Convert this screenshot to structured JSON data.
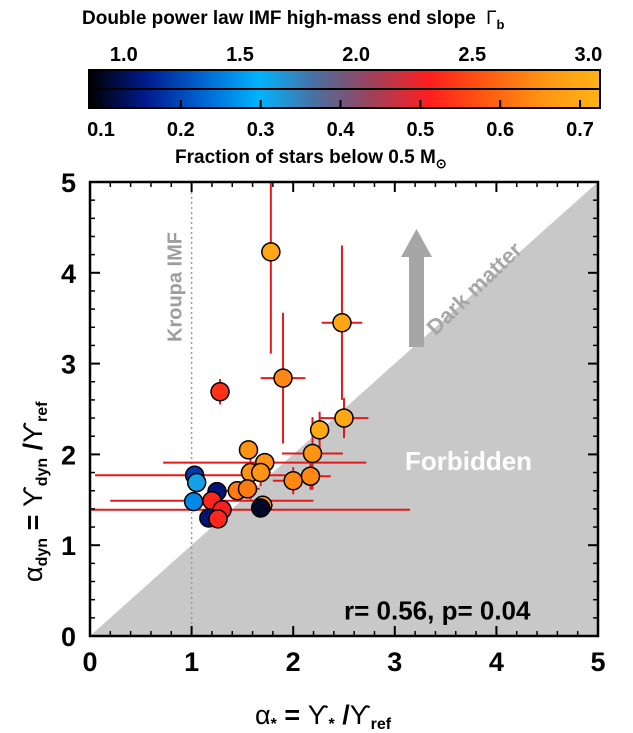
{
  "colorbar": {
    "top_title": "Double power law IMF high-mass end slope",
    "top_title_symbol": "Γ",
    "top_title_sub": "b",
    "top_ticks": [
      "1.0",
      "1.5",
      "2.0",
      "2.5",
      "3.0"
    ],
    "top_range": [
      0.85,
      3.05
    ],
    "bottom_ticks": [
      "0.1",
      "0.2",
      "0.3",
      "0.4",
      "0.5",
      "0.6",
      "0.7"
    ],
    "bottom_range": [
      0.085,
      0.725
    ],
    "bottom_title": "Fraction of stars below 0.5 M",
    "bottom_title_sub": "⊙",
    "colors": [
      "#000000",
      "#001a8c",
      "#0064d2",
      "#00b4ff",
      "#4c6e9e",
      "#a0405a",
      "#ff1e1e",
      "#ff5a10",
      "#ff9414",
      "#ffb414"
    ]
  },
  "chart_data": {
    "type": "scatter",
    "xlim": [
      0,
      5
    ],
    "ylim": [
      0,
      5
    ],
    "x_ticks": [
      "0",
      "1",
      "2",
      "3",
      "4",
      "5"
    ],
    "y_ticks": [
      "0",
      "1",
      "2",
      "3",
      "4",
      "5"
    ],
    "xlabel_parts": {
      "alpha": "α",
      "alpha_sub": "*",
      "eq": " = ",
      "ups": "ϒ",
      "ups_sub": "*",
      "slash": " /",
      "ups2": "ϒ",
      "ups2_sub": "ref"
    },
    "ylabel_parts": {
      "alpha": "α",
      "alpha_sub": "dyn",
      "eq": " = ",
      "ups": "ϒ",
      "ups_sub": "dyn",
      "slash": " /",
      "ups2": "ϒ",
      "ups2_sub": "ref"
    },
    "reference_line": {
      "x": 1.0,
      "label": "Kroupa IMF"
    },
    "regions": {
      "forbidden_label": "Forbidden",
      "dark_matter_label": "Dark matter"
    },
    "stats_label": "r= 0.56, p= 0.04",
    "points": [
      {
        "x": 1.78,
        "y": 4.23,
        "xerr": [
          0.03,
          0.03
        ],
        "yerr": [
          1.12,
          1.12
        ],
        "gamma": 2.95
      },
      {
        "x": 2.48,
        "y": 3.45,
        "xerr": [
          0.2,
          0.2
        ],
        "yerr": [
          0.85,
          0.85
        ],
        "gamma": 2.95
      },
      {
        "x": 1.9,
        "y": 2.84,
        "xerr": [
          0.22,
          0.22
        ],
        "yerr": [
          0.72,
          0.72
        ],
        "gamma": 2.75
      },
      {
        "x": 1.28,
        "y": 2.69,
        "xerr": [
          0.03,
          0.03
        ],
        "yerr": [
          0.14,
          0.14
        ],
        "gamma": 2.4
      },
      {
        "x": 2.26,
        "y": 2.27,
        "xerr": [
          0.08,
          0.08
        ],
        "yerr": [
          0.2,
          0.2
        ],
        "gamma": 2.98
      },
      {
        "x": 2.5,
        "y": 2.4,
        "xerr": [
          0.24,
          0.24
        ],
        "yerr": [
          0.22,
          0.22
        ],
        "gamma": 2.95
      },
      {
        "x": 1.56,
        "y": 2.05,
        "xerr": [
          0.04,
          0.04
        ],
        "yerr": [
          0.04,
          0.04
        ],
        "gamma": 2.8
      },
      {
        "x": 2.19,
        "y": 2.01,
        "xerr": [
          0.3,
          0.3
        ],
        "yerr": [
          0.4,
          0.4
        ],
        "gamma": 2.8
      },
      {
        "x": 1.72,
        "y": 1.91,
        "xerr": [
          1.0,
          1.0
        ],
        "yerr": [
          0.1,
          0.1
        ],
        "gamma": 2.8
      },
      {
        "x": 1.58,
        "y": 1.8,
        "xerr": [
          0.1,
          0.1
        ],
        "yerr": [
          0.3,
          0.3
        ],
        "gamma": 2.8
      },
      {
        "x": 1.68,
        "y": 1.8,
        "xerr": [
          0.1,
          0.1
        ],
        "yerr": [
          0.15,
          0.15
        ],
        "gamma": 2.8
      },
      {
        "x": 2.0,
        "y": 1.71,
        "xerr": [
          0.2,
          0.2
        ],
        "yerr": [
          0.15,
          0.15
        ],
        "gamma": 2.75
      },
      {
        "x": 2.17,
        "y": 1.76,
        "xerr": [
          0.2,
          0.2
        ],
        "yerr": [
          0.15,
          0.15
        ],
        "gamma": 2.75
      },
      {
        "x": 1.45,
        "y": 1.6,
        "xerr": [
          0.12,
          0.12
        ],
        "yerr": [
          0.1,
          0.1
        ],
        "gamma": 2.7
      },
      {
        "x": 1.55,
        "y": 1.62,
        "xerr": [
          0.12,
          0.12
        ],
        "yerr": [
          0.1,
          0.1
        ],
        "gamma": 2.7
      },
      {
        "x": 1.03,
        "y": 1.77,
        "xerr": [
          0.98,
          0.98
        ],
        "yerr": [
          0.05,
          0.05
        ],
        "gamma": 1.2
      },
      {
        "x": 1.05,
        "y": 1.69,
        "xerr": [
          0.04,
          0.04
        ],
        "yerr": [
          0.05,
          0.05
        ],
        "gamma": 1.65
      },
      {
        "x": 1.25,
        "y": 1.59,
        "xerr": [
          0.06,
          0.06
        ],
        "yerr": [
          0.05,
          0.05
        ],
        "gamma": 1.05
      },
      {
        "x": 1.2,
        "y": 1.49,
        "xerr": [
          1.0,
          1.0
        ],
        "yerr": [
          0.04,
          0.04
        ],
        "gamma": 2.35
      },
      {
        "x": 1.02,
        "y": 1.48,
        "xerr": [
          0.04,
          0.04
        ],
        "yerr": [
          0.05,
          0.05
        ],
        "gamma": 1.45
      },
      {
        "x": 1.3,
        "y": 1.39,
        "xerr": [
          1.85,
          1.85
        ],
        "yerr": [
          0.03,
          0.03
        ],
        "gamma": 2.3
      },
      {
        "x": 1.7,
        "y": 1.44,
        "xerr": [
          0.1,
          0.1
        ],
        "yerr": [
          0.1,
          0.1
        ],
        "gamma": 2.85
      },
      {
        "x": 1.68,
        "y": 1.41,
        "xerr": [
          0.08,
          0.08
        ],
        "yerr": [
          0.08,
          0.08
        ],
        "gamma": 0.92
      },
      {
        "x": 1.17,
        "y": 1.3,
        "xerr": [
          0.05,
          0.05
        ],
        "yerr": [
          0.05,
          0.05
        ],
        "gamma": 1.05
      },
      {
        "x": 1.26,
        "y": 1.29,
        "xerr": [
          0.05,
          0.05
        ],
        "yerr": [
          0.05,
          0.05
        ],
        "gamma": 2.35
      }
    ]
  }
}
